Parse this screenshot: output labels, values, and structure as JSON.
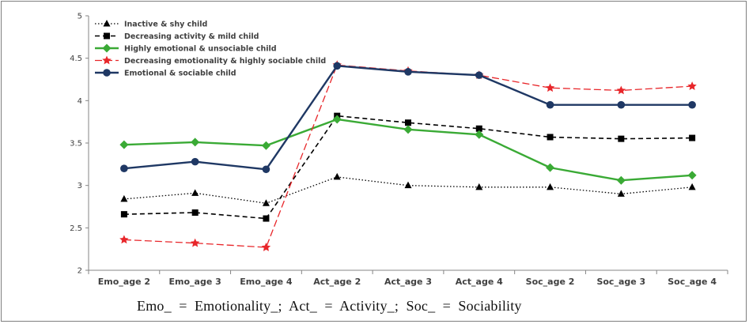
{
  "chart_data": {
    "type": "line",
    "categories": [
      "Emo_age 2",
      "Emo_age 3",
      "Emo_age 4",
      "Act_age 2",
      "Act_age 3",
      "Act_age 4",
      "Soc_age 2",
      "Soc_age 3",
      "Soc_age 4"
    ],
    "ylim": [
      2,
      5
    ],
    "yticks": [
      "2",
      "2.5",
      "3",
      "3.5",
      "4",
      "4.5",
      "5"
    ],
    "ytick_values": [
      2,
      2.5,
      3,
      3.5,
      4,
      4.5,
      5
    ],
    "grid": false,
    "legend_position": "top-left",
    "series": [
      {
        "name": "Inactive & shy child",
        "color": "#000000",
        "dash": "dotted",
        "marker": "triangle",
        "values": [
          2.84,
          2.91,
          2.79,
          3.1,
          3.0,
          2.98,
          2.98,
          2.9,
          2.98
        ]
      },
      {
        "name": "Decreasing activity & mild child",
        "color": "#000000",
        "dash": "dashed",
        "marker": "square",
        "values": [
          2.66,
          2.68,
          2.61,
          3.82,
          3.74,
          3.67,
          3.57,
          3.55,
          3.56
        ]
      },
      {
        "name": "Highly emotional & unsociable child",
        "color": "#3aaa35",
        "dash": "solid",
        "marker": "diamond",
        "values": [
          3.48,
          3.51,
          3.47,
          3.78,
          3.66,
          3.6,
          3.21,
          3.06,
          3.12
        ]
      },
      {
        "name": "Decreasing emotionality & highly sociable child",
        "color": "#e8262a",
        "dash": "longdash",
        "marker": "star",
        "values": [
          2.36,
          2.32,
          2.27,
          4.42,
          4.35,
          4.3,
          4.15,
          4.12,
          4.17
        ]
      },
      {
        "name": "Emotional & sociable child",
        "color": "#1f3864",
        "dash": "solid",
        "marker": "circle",
        "values": [
          3.2,
          3.28,
          3.19,
          4.41,
          4.34,
          4.3,
          3.95,
          3.95,
          3.95
        ]
      }
    ]
  },
  "footnote": "Emo_  =  Emotionality_;  Act_  =  Activity_;  Soc_  =  Sociability"
}
